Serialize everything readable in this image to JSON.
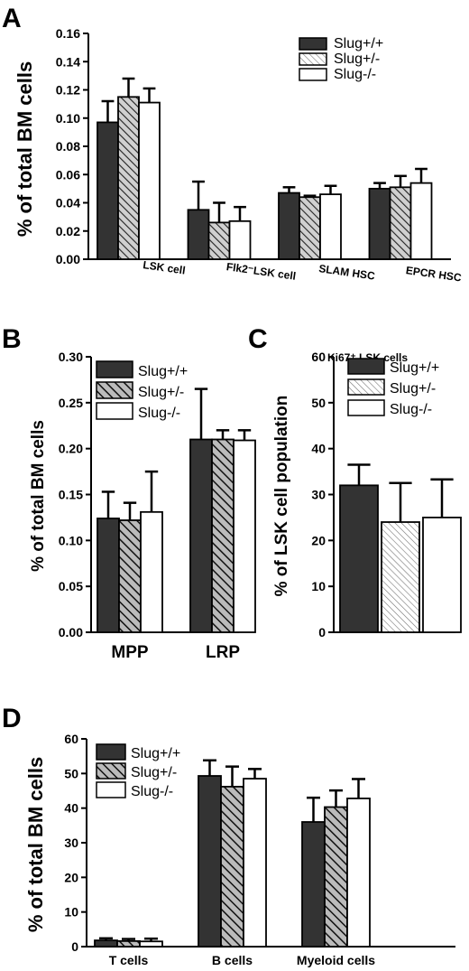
{
  "figure": {
    "panels": [
      "A",
      "B",
      "C",
      "D"
    ]
  },
  "colors": {
    "dark": "#333333",
    "hatch_bg": "#bdbdbd",
    "hatch_line": "#222222",
    "white": "#ffffff",
    "stroke": "#000000"
  },
  "chart_data": [
    {
      "panel": "A",
      "type": "bar",
      "ylabel": "% of total BM cells",
      "ylim": [
        0,
        0.16
      ],
      "yticks": [
        "0.00",
        "0.02",
        "0.04",
        "0.06",
        "0.08",
        "0.10",
        "0.12",
        "0.14",
        "0.16"
      ],
      "categories": [
        "LSK cell",
        "Flk2⁻LSK cell",
        "SLAM HSC",
        "EPCR HSC"
      ],
      "legend_position": "top-right",
      "series": [
        {
          "name": "Slug+/+",
          "values": [
            0.097,
            0.035,
            0.047,
            0.05
          ],
          "errors": [
            0.015,
            0.02,
            0.004,
            0.004
          ]
        },
        {
          "name": "Slug+/-",
          "values": [
            0.115,
            0.026,
            0.044,
            0.051
          ],
          "errors": [
            0.013,
            0.014,
            0.001,
            0.008
          ]
        },
        {
          "name": "Slug-/-",
          "values": [
            0.111,
            0.027,
            0.046,
            0.054
          ],
          "errors": [
            0.01,
            0.01,
            0.006,
            0.01
          ]
        }
      ]
    },
    {
      "panel": "B",
      "type": "bar",
      "ylabel": "% of total BM cells",
      "ylim": [
        0,
        0.3
      ],
      "yticks": [
        "0.00",
        "0.05",
        "0.10",
        "0.15",
        "0.20",
        "0.25",
        "0.30"
      ],
      "categories": [
        "MPP",
        "LRP"
      ],
      "legend_position": "top-left",
      "series": [
        {
          "name": "Slug+/+",
          "values": [
            0.124,
            0.21
          ],
          "errors": [
            0.029,
            0.055
          ]
        },
        {
          "name": "Slug+/-",
          "values": [
            0.122,
            0.21
          ],
          "errors": [
            0.019,
            0.01
          ]
        },
        {
          "name": "Slug-/-",
          "values": [
            0.131,
            0.209
          ],
          "errors": [
            0.044,
            0.011
          ]
        }
      ]
    },
    {
      "panel": "C",
      "type": "bar",
      "title": "Ki67⁺ LSK cells",
      "ylabel": "% of LSK cell population",
      "ylim": [
        0,
        60
      ],
      "yticks": [
        "0",
        "10",
        "20",
        "30",
        "40",
        "50",
        "60"
      ],
      "categories": [
        ""
      ],
      "legend_position": "top-left",
      "series": [
        {
          "name": "Slug+/+",
          "values": [
            32
          ],
          "errors": [
            4.5
          ]
        },
        {
          "name": "Slug+/-",
          "values": [
            24
          ],
          "errors": [
            8.5
          ]
        },
        {
          "name": "Slug-/-",
          "values": [
            25
          ],
          "errors": [
            8.3
          ]
        }
      ]
    },
    {
      "panel": "D",
      "type": "bar",
      "ylabel": "% of total BM cells",
      "ylim": [
        0,
        60
      ],
      "yticks": [
        "0",
        "10",
        "20",
        "30",
        "40",
        "50",
        "60"
      ],
      "categories": [
        "T cells",
        "B cells",
        "Myeloid cells"
      ],
      "legend_position": "top-left",
      "series": [
        {
          "name": "Slug+/+",
          "values": [
            1.8,
            49.3,
            36.0
          ],
          "errors": [
            0.6,
            4.5,
            7.0
          ]
        },
        {
          "name": "Slug+/-",
          "values": [
            1.6,
            46.2,
            40.3
          ],
          "errors": [
            0.6,
            5.8,
            4.8
          ]
        },
        {
          "name": "Slug-/-",
          "values": [
            1.5,
            48.5,
            42.8
          ],
          "errors": [
            0.8,
            2.8,
            5.6
          ]
        }
      ]
    }
  ]
}
